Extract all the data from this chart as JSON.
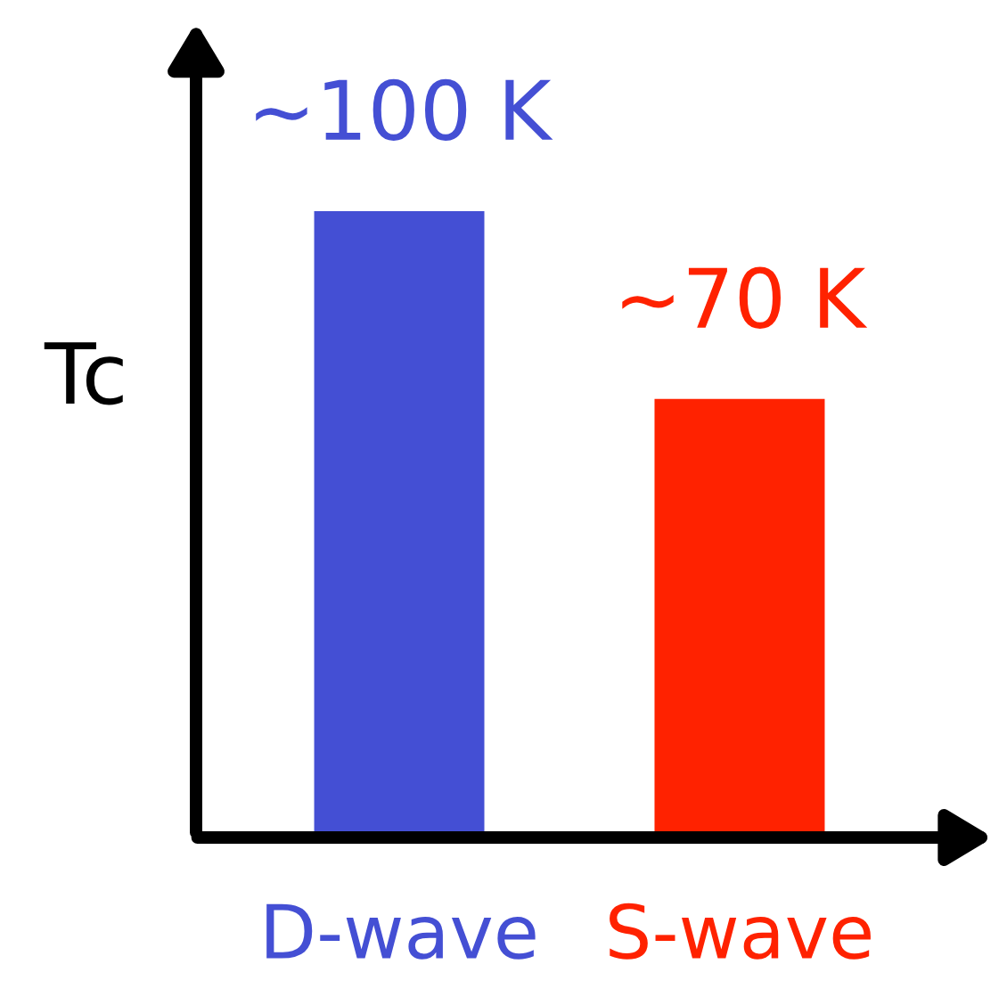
{
  "chart_data": {
    "type": "bar",
    "ylabel": "Tc",
    "categories": [
      "D-wave",
      "S-wave"
    ],
    "values": [
      100,
      70
    ],
    "colors": [
      "#444fd4",
      "#ff2200"
    ],
    "value_labels": [
      "~100 K",
      "~70 K"
    ],
    "tick_labels": "x",
    "grid": false
  }
}
